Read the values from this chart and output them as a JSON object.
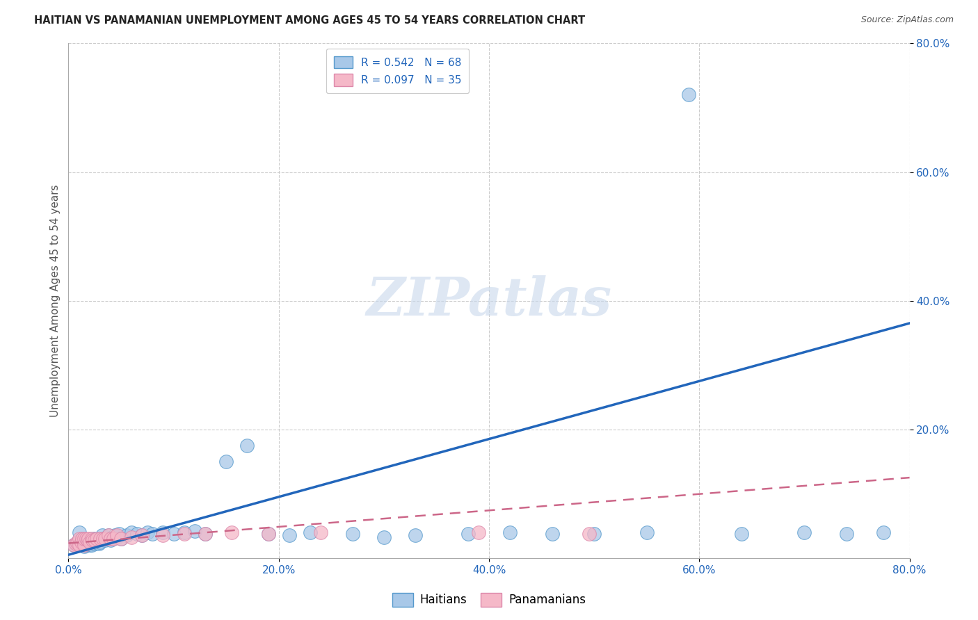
{
  "title": "HAITIAN VS PANAMANIAN UNEMPLOYMENT AMONG AGES 45 TO 54 YEARS CORRELATION CHART",
  "source": "Source: ZipAtlas.com",
  "ylabel": "Unemployment Among Ages 45 to 54 years",
  "xlim": [
    0.0,
    0.8
  ],
  "ylim": [
    0.0,
    0.8
  ],
  "haitian_R": 0.542,
  "haitian_N": 68,
  "panamanian_R": 0.097,
  "panamanian_N": 35,
  "haitian_color": "#a8c8e8",
  "haitian_edge_color": "#5599cc",
  "haitian_line_color": "#2266bb",
  "panamanian_color": "#f5b8c8",
  "panamanian_edge_color": "#dd88aa",
  "panamanian_line_color": "#cc6688",
  "background_color": "#ffffff",
  "haitian_scatter_x": [
    0.005,
    0.008,
    0.01,
    0.01,
    0.012,
    0.013,
    0.013,
    0.015,
    0.015,
    0.016,
    0.016,
    0.017,
    0.018,
    0.019,
    0.02,
    0.02,
    0.021,
    0.022,
    0.022,
    0.023,
    0.024,
    0.025,
    0.025,
    0.026,
    0.027,
    0.028,
    0.029,
    0.03,
    0.032,
    0.033,
    0.035,
    0.036,
    0.038,
    0.04,
    0.042,
    0.044,
    0.046,
    0.048,
    0.05,
    0.055,
    0.06,
    0.065,
    0.07,
    0.075,
    0.08,
    0.09,
    0.1,
    0.11,
    0.12,
    0.13,
    0.15,
    0.17,
    0.19,
    0.21,
    0.23,
    0.27,
    0.3,
    0.33,
    0.38,
    0.42,
    0.46,
    0.5,
    0.55,
    0.59,
    0.64,
    0.7,
    0.74,
    0.775
  ],
  "haitian_scatter_y": [
    0.02,
    0.025,
    0.02,
    0.04,
    0.02,
    0.025,
    0.03,
    0.018,
    0.022,
    0.02,
    0.025,
    0.028,
    0.022,
    0.024,
    0.02,
    0.025,
    0.022,
    0.02,
    0.03,
    0.025,
    0.028,
    0.022,
    0.03,
    0.025,
    0.028,
    0.025,
    0.022,
    0.025,
    0.035,
    0.03,
    0.028,
    0.032,
    0.035,
    0.028,
    0.03,
    0.035,
    0.032,
    0.038,
    0.03,
    0.035,
    0.04,
    0.038,
    0.035,
    0.04,
    0.038,
    0.04,
    0.038,
    0.04,
    0.042,
    0.038,
    0.15,
    0.175,
    0.038,
    0.035,
    0.04,
    0.038,
    0.032,
    0.035,
    0.038,
    0.04,
    0.038,
    0.038,
    0.04,
    0.72,
    0.038,
    0.04,
    0.038,
    0.04
  ],
  "panamanian_scatter_x": [
    0.005,
    0.007,
    0.008,
    0.01,
    0.01,
    0.012,
    0.013,
    0.015,
    0.015,
    0.017,
    0.018,
    0.019,
    0.02,
    0.022,
    0.023,
    0.025,
    0.027,
    0.03,
    0.033,
    0.035,
    0.038,
    0.04,
    0.043,
    0.046,
    0.05,
    0.06,
    0.07,
    0.09,
    0.11,
    0.13,
    0.155,
    0.19,
    0.24,
    0.39,
    0.495
  ],
  "panamanian_scatter_y": [
    0.02,
    0.022,
    0.024,
    0.02,
    0.03,
    0.025,
    0.03,
    0.02,
    0.03,
    0.03,
    0.028,
    0.03,
    0.025,
    0.03,
    0.028,
    0.028,
    0.03,
    0.03,
    0.03,
    0.03,
    0.035,
    0.03,
    0.03,
    0.035,
    0.03,
    0.032,
    0.035,
    0.035,
    0.038,
    0.038,
    0.04,
    0.038,
    0.04,
    0.04,
    0.038
  ],
  "haitian_line_x": [
    0.0,
    0.8
  ],
  "haitian_line_y": [
    0.005,
    0.365
  ],
  "panamanian_line_x": [
    0.0,
    0.8
  ],
  "panamanian_line_y": [
    0.023,
    0.125
  ]
}
